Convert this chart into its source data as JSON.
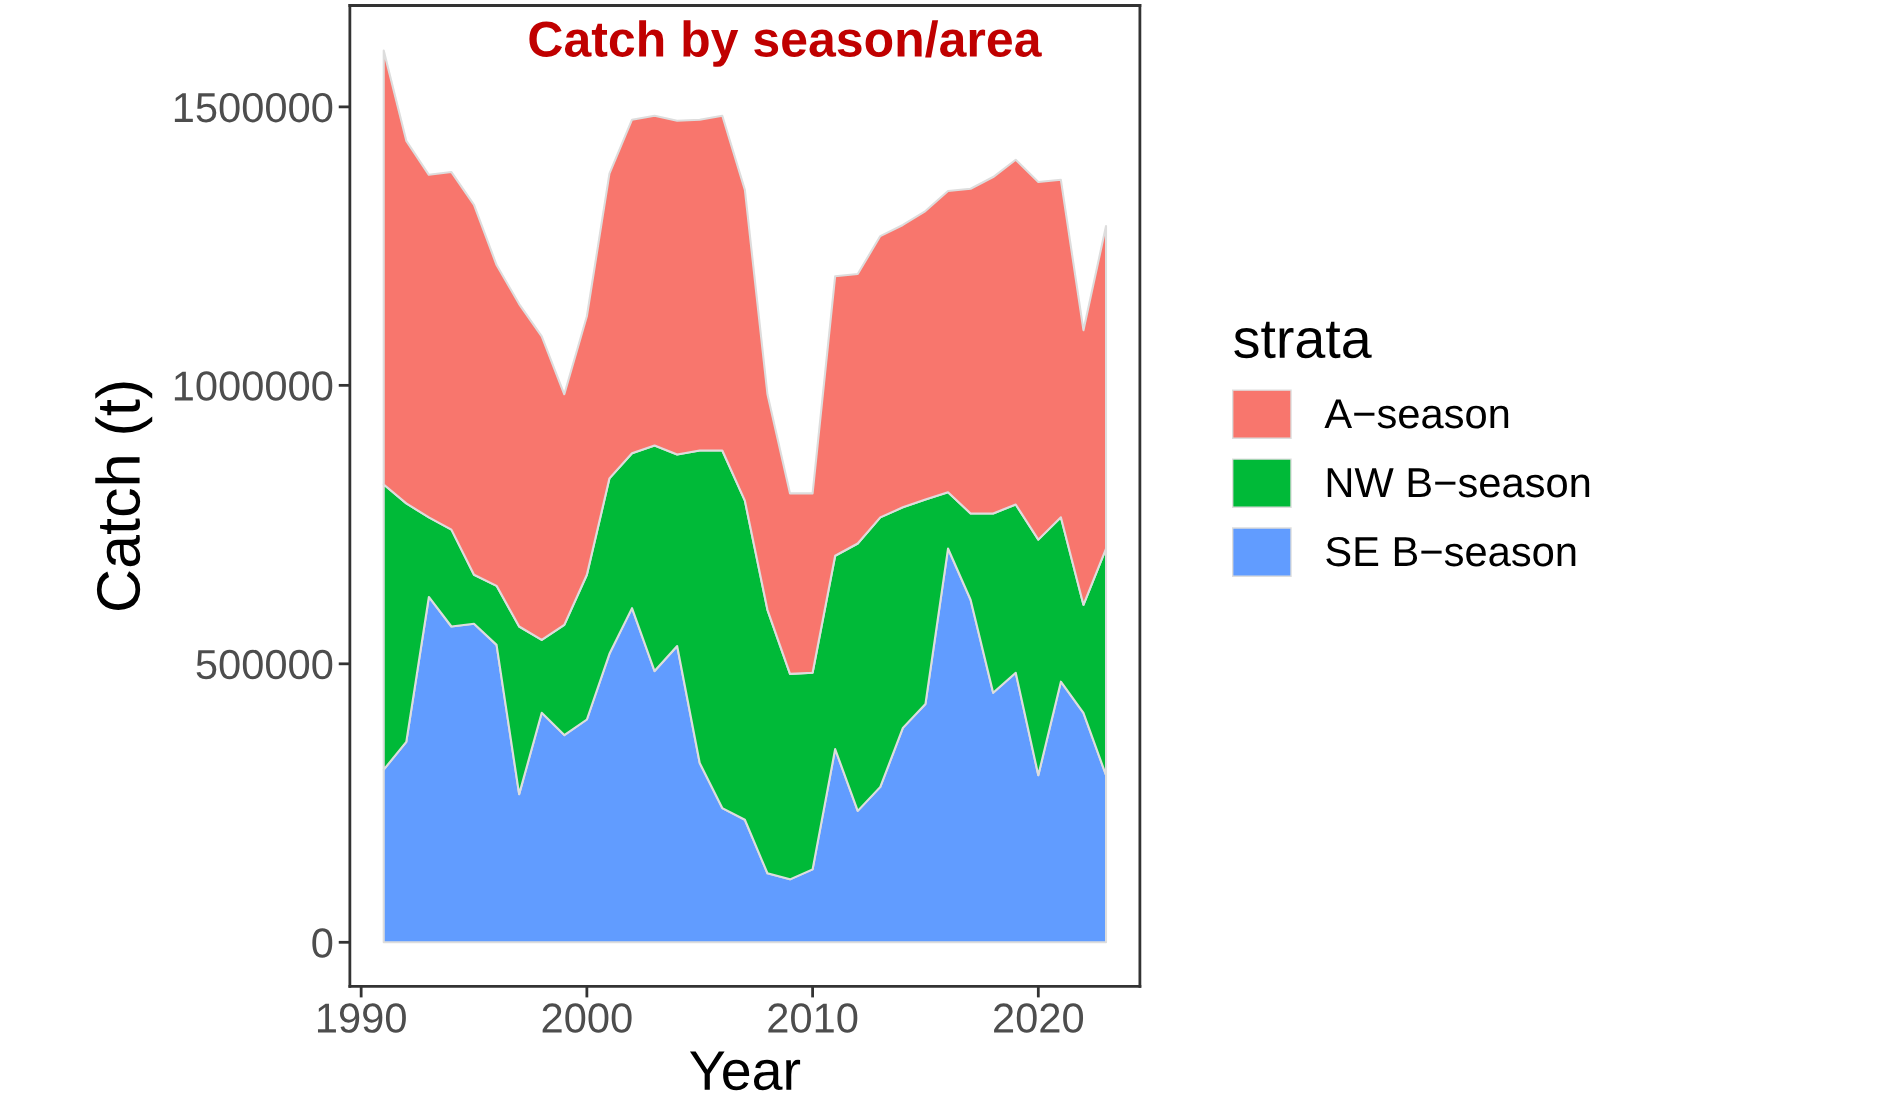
{
  "chart_data": {
    "type": "area",
    "stacked": true,
    "title": "Catch by season/area",
    "xlabel": "Year",
    "ylabel": "Catch (t)",
    "legend_title": "strata",
    "legend": "right",
    "x": [
      1991,
      1992,
      1993,
      1994,
      1995,
      1996,
      1997,
      1998,
      1999,
      2000,
      2001,
      2002,
      2003,
      2004,
      2005,
      2006,
      2007,
      2008,
      2009,
      2010,
      2011,
      2012,
      2013,
      2014,
      2015,
      2016,
      2017,
      2018,
      2019,
      2020,
      2021,
      2022,
      2023
    ],
    "series": [
      {
        "name": "SE B−season",
        "color": "#619cff",
        "values": [
          310000,
          360000,
          620000,
          567000,
          572000,
          534000,
          266000,
          412000,
          372000,
          400000,
          518000,
          600000,
          487000,
          532000,
          322000,
          241000,
          220000,
          124000,
          113000,
          131000,
          347000,
          236000,
          279000,
          385000,
          428000,
          707000,
          615000,
          448000,
          484000,
          300000,
          468000,
          412000,
          300000
        ]
      },
      {
        "name": "NW B−season",
        "color": "#00ba38",
        "values": [
          512000,
          428000,
          143000,
          174000,
          88000,
          106000,
          301000,
          131000,
          198000,
          260000,
          315000,
          278000,
          405000,
          344000,
          561000,
          642000,
          573000,
          473000,
          369000,
          353000,
          347000,
          480000,
          484000,
          396000,
          367000,
          101000,
          155000,
          322000,
          302000,
          423000,
          295000,
          194000,
          407000
        ]
      },
      {
        "name": "A−season",
        "color": "#f8766d",
        "values": [
          779000,
          651000,
          615000,
          642000,
          664000,
          576000,
          579000,
          545000,
          414000,
          464000,
          547000,
          599000,
          592000,
          599000,
          594000,
          601000,
          558000,
          387000,
          324000,
          322000,
          502000,
          484000,
          505000,
          507000,
          518000,
          541000,
          583000,
          604000,
          619000,
          642000,
          606000,
          493000,
          579000
        ]
      }
    ],
    "xlim": [
      1989.5,
      2024.5
    ],
    "xticks": [
      1990,
      2000,
      2010,
      2020
    ],
    "ylim": [
      -79000,
      1682000
    ],
    "yticks": [
      0,
      500000,
      1000000,
      1500000
    ],
    "grid": false
  }
}
